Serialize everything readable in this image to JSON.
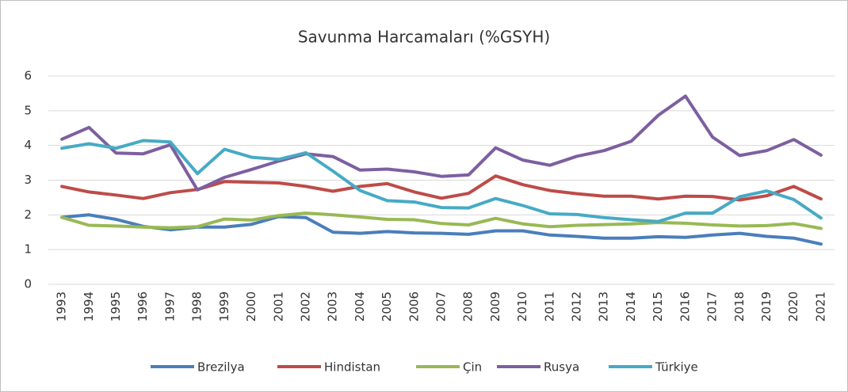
{
  "chart_data": {
    "type": "line",
    "title": "Savunma Harcamaları (%GSYH)",
    "categories": [
      "1993",
      "1994",
      "1995",
      "1996",
      "1997",
      "1998",
      "1999",
      "2000",
      "2001",
      "2002",
      "2003",
      "2004",
      "2005",
      "2006",
      "2007",
      "2008",
      "2009",
      "2010",
      "2011",
      "2012",
      "2013",
      "2014",
      "2015",
      "2016",
      "2017",
      "2018",
      "2019",
      "2020",
      "2021"
    ],
    "series": [
      {
        "name": "Brezilya",
        "color": "#4a7ebb",
        "values": [
          1.93,
          2.0,
          1.87,
          1.67,
          1.57,
          1.65,
          1.65,
          1.73,
          1.95,
          1.92,
          1.5,
          1.47,
          1.52,
          1.48,
          1.47,
          1.44,
          1.54,
          1.54,
          1.42,
          1.38,
          1.33,
          1.33,
          1.37,
          1.35,
          1.42,
          1.47,
          1.38,
          1.33,
          1.16
        ]
      },
      {
        "name": "Hindistan",
        "color": "#be4b48",
        "values": [
          2.82,
          2.66,
          2.57,
          2.47,
          2.64,
          2.73,
          2.96,
          2.94,
          2.92,
          2.82,
          2.68,
          2.82,
          2.9,
          2.66,
          2.48,
          2.62,
          3.12,
          2.87,
          2.7,
          2.61,
          2.54,
          2.54,
          2.46,
          2.54,
          2.53,
          2.43,
          2.55,
          2.82,
          2.46
        ]
      },
      {
        "name": "Çin",
        "color": "#98b954",
        "values": [
          1.93,
          1.7,
          1.68,
          1.65,
          1.63,
          1.66,
          1.88,
          1.85,
          1.98,
          2.05,
          2.0,
          1.94,
          1.87,
          1.86,
          1.75,
          1.71,
          1.9,
          1.74,
          1.66,
          1.7,
          1.72,
          1.74,
          1.78,
          1.76,
          1.71,
          1.68,
          1.69,
          1.75,
          1.61
        ]
      },
      {
        "name": "Rusya",
        "color": "#7d5fa0",
        "values": [
          4.18,
          4.52,
          3.78,
          3.76,
          4.02,
          2.72,
          3.08,
          3.31,
          3.55,
          3.76,
          3.68,
          3.29,
          3.32,
          3.24,
          3.11,
          3.15,
          3.93,
          3.58,
          3.43,
          3.69,
          3.85,
          4.12,
          4.87,
          5.42,
          4.24,
          3.71,
          3.85,
          4.17,
          3.72
        ]
      },
      {
        "name": "Türkiye",
        "color": "#46aac5",
        "values": [
          3.92,
          4.05,
          3.92,
          4.14,
          4.1,
          3.19,
          3.89,
          3.66,
          3.6,
          3.79,
          3.26,
          2.7,
          2.41,
          2.37,
          2.21,
          2.2,
          2.47,
          2.27,
          2.03,
          2.01,
          1.92,
          1.86,
          1.81,
          2.05,
          2.05,
          2.52,
          2.69,
          2.44,
          1.91
        ]
      }
    ],
    "ylim": [
      0,
      6
    ],
    "yticks": [
      0,
      1,
      2,
      3,
      4,
      5,
      6
    ],
    "grid": true,
    "legend": "bottom"
  }
}
